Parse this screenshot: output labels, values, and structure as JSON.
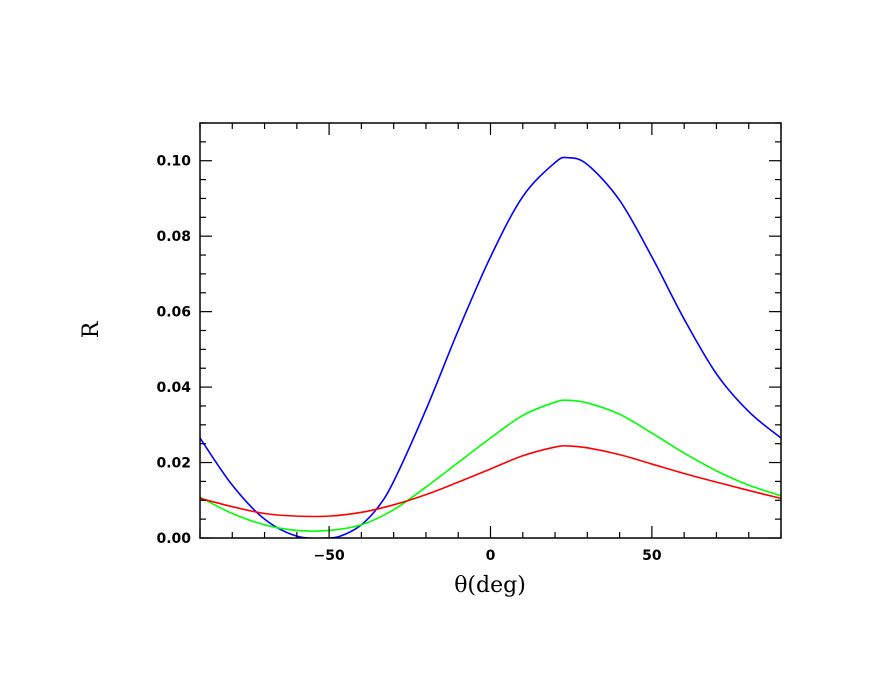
{
  "chart_data": {
    "type": "line",
    "xlabel": "θ(deg)",
    "ylabel": "R",
    "xlim": [
      -90,
      90
    ],
    "ylim": [
      0,
      0.11
    ],
    "x_ticks": [
      -50,
      0,
      50
    ],
    "x_tick_labels": [
      "−50",
      "0",
      "50"
    ],
    "y_ticks": [
      0,
      0.02,
      0.04,
      0.06,
      0.08,
      0.1
    ],
    "y_tick_labels": [
      "0.00",
      "0.02",
      "0.04",
      "0.06",
      "0.08",
      "0.10"
    ],
    "x_minor_step": 10,
    "y_minor_step": 0.005,
    "grid": false,
    "series": [
      {
        "color": "#0000ff",
        "x": [
          -90,
          -80,
          -70,
          -60,
          -50,
          -45,
          -40,
          -35,
          -30,
          -20,
          -10,
          0,
          10,
          20,
          24,
          30,
          40,
          50,
          60,
          70,
          80,
          90
        ],
        "y": [
          0.0265,
          0.014,
          0.005,
          0.0005,
          0.0,
          0.001,
          0.0035,
          0.008,
          0.015,
          0.034,
          0.055,
          0.0745,
          0.0905,
          0.0995,
          0.1008,
          0.099,
          0.0895,
          0.0745,
          0.058,
          0.0435,
          0.0335,
          0.0265
        ]
      },
      {
        "color": "#00ff00",
        "x": [
          -90,
          -80,
          -70,
          -60,
          -50,
          -40,
          -30,
          -20,
          -10,
          0,
          10,
          20,
          24,
          30,
          40,
          50,
          60,
          70,
          80,
          90
        ],
        "y": [
          0.0108,
          0.0065,
          0.0035,
          0.002,
          0.002,
          0.0035,
          0.0075,
          0.0135,
          0.02,
          0.0265,
          0.0325,
          0.036,
          0.0365,
          0.0358,
          0.0328,
          0.0278,
          0.0225,
          0.0178,
          0.014,
          0.0112
        ]
      },
      {
        "color": "#ff0000",
        "x": [
          -90,
          -80,
          -70,
          -60,
          -50,
          -40,
          -30,
          -20,
          -10,
          0,
          10,
          20,
          24,
          30,
          40,
          50,
          60,
          70,
          80,
          90
        ],
        "y": [
          0.0105,
          0.0083,
          0.0065,
          0.0058,
          0.0058,
          0.0068,
          0.0088,
          0.0115,
          0.0148,
          0.0183,
          0.0218,
          0.0241,
          0.0244,
          0.0239,
          0.0221,
          0.0196,
          0.0171,
          0.0148,
          0.0126,
          0.0105
        ]
      }
    ]
  }
}
